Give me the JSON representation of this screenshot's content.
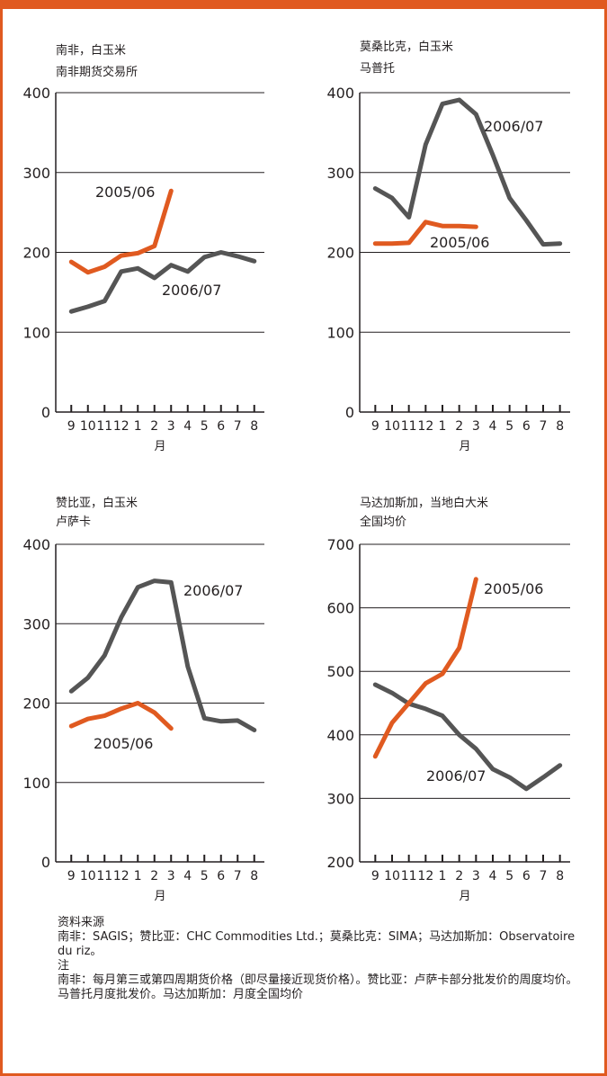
{
  "colors": {
    "frame": "#e05a20",
    "series_2006": "#e05a20",
    "series_2005": "#555555",
    "grid": "#231f20"
  },
  "chart_data": [
    {
      "type": "line",
      "title": "南非，白玉米",
      "subtitle": "南非期货交易所",
      "categories": [
        "9",
        "10",
        "11",
        "12",
        "1",
        "2",
        "3",
        "4",
        "5",
        "6",
        "7",
        "8"
      ],
      "xlabel": "月",
      "ylim": [
        0,
        400
      ],
      "yticks": [
        "0",
        "100",
        "200",
        "300",
        "400"
      ],
      "series": [
        {
          "name": "2006/07",
          "color": "#e05a20",
          "values": [
            188,
            175,
            182,
            196,
            199,
            208,
            277,
            null,
            null,
            null,
            null,
            null
          ]
        },
        {
          "name": "2005/06",
          "color": "#555555",
          "values": [
            126,
            132,
            139,
            176,
            180,
            168,
            184,
            176,
            194,
            200,
            195,
            189
          ]
        }
      ]
    },
    {
      "type": "line",
      "title": "莫桑比克，白玉米",
      "subtitle": "马普托",
      "categories": [
        "9",
        "10",
        "11",
        "12",
        "1",
        "2",
        "3",
        "4",
        "5",
        "6",
        "7",
        "8"
      ],
      "xlabel": "月",
      "ylim": [
        0,
        400
      ],
      "yticks": [
        "0",
        "100",
        "200",
        "300",
        "400"
      ],
      "series": [
        {
          "name": "2006/07",
          "color": "#e05a20",
          "values": [
            211,
            211,
            212,
            238,
            233,
            233,
            232,
            null,
            null,
            null,
            null,
            null
          ]
        },
        {
          "name": "2005/06",
          "color": "#555555",
          "values": [
            280,
            268,
            244,
            335,
            386,
            391,
            373,
            322,
            268,
            240,
            210,
            211
          ]
        }
      ]
    },
    {
      "type": "line",
      "title": "赞比亚，白玉米",
      "subtitle": "卢萨卡",
      "categories": [
        "9",
        "10",
        "11",
        "12",
        "1",
        "2",
        "3",
        "4",
        "5",
        "6",
        "7",
        "8"
      ],
      "xlabel": "月",
      "ylim": [
        0,
        400
      ],
      "yticks": [
        "0",
        "100",
        "200",
        "300",
        "400"
      ],
      "series": [
        {
          "name": "2006/07",
          "color": "#e05a20",
          "values": [
            171,
            180,
            184,
            193,
            200,
            188,
            168,
            null,
            null,
            null,
            null,
            null
          ]
        },
        {
          "name": "2005/06",
          "color": "#555555",
          "values": [
            215,
            232,
            260,
            308,
            346,
            354,
            352,
            246,
            181,
            177,
            178,
            166
          ]
        }
      ]
    },
    {
      "type": "line",
      "title": "马达加斯加，当地白大米",
      "subtitle": "全国均价",
      "categories": [
        "9",
        "10",
        "11",
        "12",
        "1",
        "2",
        "3",
        "4",
        "5",
        "6",
        "7",
        "8"
      ],
      "xlabel": "月",
      "ylim": [
        200,
        700
      ],
      "yticks": [
        "200",
        "300",
        "400",
        "500",
        "600",
        "700"
      ],
      "series": [
        {
          "name": "2006/07",
          "color": "#e05a20",
          "values": [
            366,
            419,
            450,
            481,
            496,
            537,
            645,
            null,
            null,
            null,
            null,
            null
          ]
        },
        {
          "name": "2005/06",
          "color": "#555555",
          "values": [
            479,
            466,
            449,
            441,
            430,
            400,
            378,
            346,
            333,
            315,
            333,
            352
          ]
        }
      ]
    }
  ],
  "notes": {
    "source_head": "资料来源",
    "source_body": "南非：SAGIS；赞比亚：CHC Commodities Ltd.；莫桑比克：SIMA；马达加斯加：Observatoire du riz。",
    "note_head": "注",
    "note_body": "南非：每月第三或第四周期货价格（即尽量接近现货价格）。赞比亚：卢萨卡部分批发价的周度均价。马普托月度批发价。马达加斯加：月度全国均价"
  }
}
